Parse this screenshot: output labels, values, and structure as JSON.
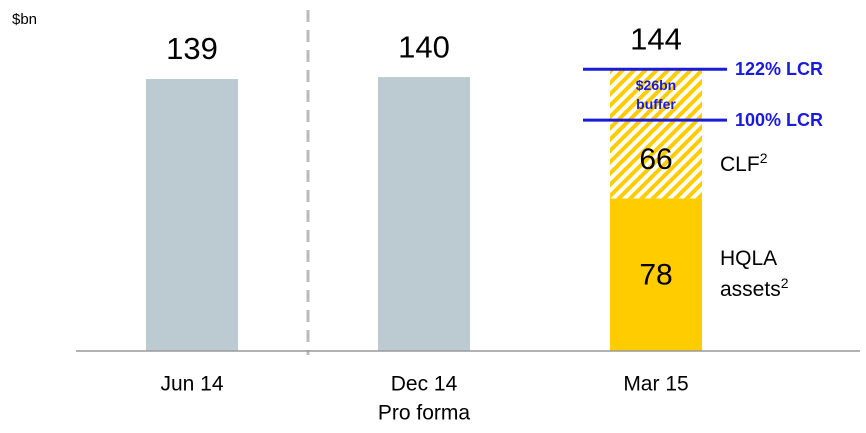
{
  "chart_data": {
    "type": "stacked_bar",
    "y_label": "$bn",
    "categories": [
      "Jun 14",
      "Dec 14",
      "Mar 15"
    ],
    "category_notes": [
      null,
      "Pro forma",
      null
    ],
    "totals": [
      139,
      140,
      144
    ],
    "bar_color": "#bccbd2",
    "ylim": [
      0,
      150
    ],
    "stack_index": 2,
    "segments": [
      {
        "name": "HQLA assets",
        "footnote": "2",
        "value": 78,
        "color": "#ffcc00",
        "pattern": "solid"
      },
      {
        "name": "CLF",
        "footnote": "2",
        "value": 66,
        "color": "#ffcc00",
        "pattern": "hatch"
      }
    ],
    "lcr_lines": [
      {
        "label": "122% LCR",
        "value": 144
      },
      {
        "label": "100% LCR",
        "value": 118
      }
    ],
    "lcr_color": "#1a1adb",
    "buffer_label": "$26bn buffer"
  }
}
